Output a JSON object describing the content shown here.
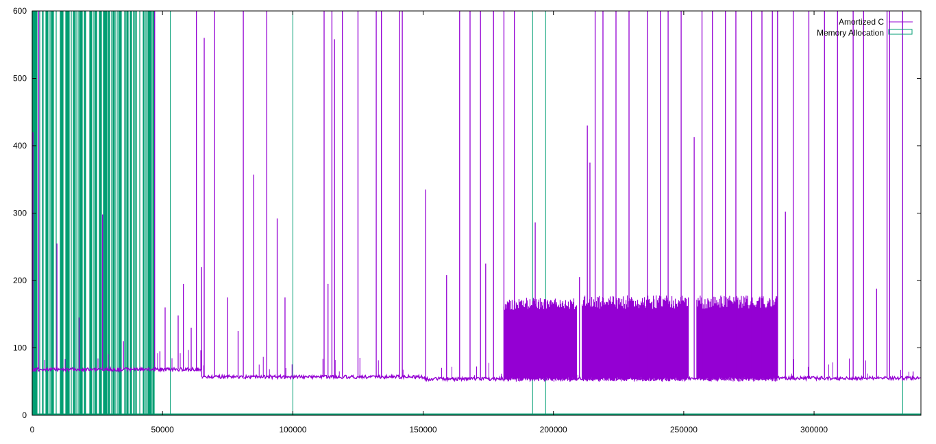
{
  "chart_data": {
    "type": "line",
    "title": "",
    "xlabel": "",
    "ylabel": "",
    "xlim": [
      0,
      341000
    ],
    "ylim": [
      0,
      600
    ],
    "x_ticks": [
      0,
      50000,
      100000,
      150000,
      200000,
      250000,
      300000
    ],
    "y_ticks": [
      0,
      100,
      200,
      300,
      400,
      500,
      600
    ],
    "grid": false,
    "legend_position": "top-right",
    "series": [
      {
        "name": "Amortized C",
        "color": "#9400d3",
        "baseline_segments": [
          {
            "x_start": 0,
            "x_end": 65000,
            "y": 68
          },
          {
            "x_start": 65000,
            "x_end": 150000,
            "y": 57
          },
          {
            "x_start": 150000,
            "x_end": 181000,
            "y": 54
          },
          {
            "x_start": 181000,
            "x_end": 341000,
            "y": 55
          }
        ],
        "dense_bands": [
          {
            "x_start": 181000,
            "x_end": 209000,
            "y_low": 50,
            "y_high": 175
          },
          {
            "x_start": 211000,
            "x_end": 252000,
            "y_low": 50,
            "y_high": 178
          },
          {
            "x_start": 255000,
            "x_end": 286000,
            "y_low": 50,
            "y_high": 178
          }
        ],
        "spikes": [
          {
            "x": 300,
            "y": 420
          },
          {
            "x": 2500,
            "y": 600
          },
          {
            "x": 9500,
            "y": 255
          },
          {
            "x": 18000,
            "y": 145
          },
          {
            "x": 27000,
            "y": 298
          },
          {
            "x": 35000,
            "y": 110
          },
          {
            "x": 47000,
            "y": 600
          },
          {
            "x": 49000,
            "y": 95
          },
          {
            "x": 51000,
            "y": 160
          },
          {
            "x": 56000,
            "y": 148
          },
          {
            "x": 58000,
            "y": 195
          },
          {
            "x": 61000,
            "y": 130
          },
          {
            "x": 63000,
            "y": 600
          },
          {
            "x": 65000,
            "y": 220
          },
          {
            "x": 66000,
            "y": 560
          },
          {
            "x": 70000,
            "y": 600
          },
          {
            "x": 75000,
            "y": 175
          },
          {
            "x": 79000,
            "y": 125
          },
          {
            "x": 81000,
            "y": 600
          },
          {
            "x": 85000,
            "y": 357
          },
          {
            "x": 90000,
            "y": 600
          },
          {
            "x": 94000,
            "y": 292
          },
          {
            "x": 97000,
            "y": 175
          },
          {
            "x": 112000,
            "y": 600
          },
          {
            "x": 113500,
            "y": 195
          },
          {
            "x": 115000,
            "y": 600
          },
          {
            "x": 116000,
            "y": 558
          },
          {
            "x": 119000,
            "y": 600
          },
          {
            "x": 125000,
            "y": 600
          },
          {
            "x": 132000,
            "y": 600
          },
          {
            "x": 134000,
            "y": 600
          },
          {
            "x": 141000,
            "y": 600
          },
          {
            "x": 142000,
            "y": 600
          },
          {
            "x": 151000,
            "y": 335
          },
          {
            "x": 159000,
            "y": 208
          },
          {
            "x": 164000,
            "y": 600
          },
          {
            "x": 168000,
            "y": 600
          },
          {
            "x": 172000,
            "y": 600
          },
          {
            "x": 174000,
            "y": 225
          },
          {
            "x": 177000,
            "y": 600
          },
          {
            "x": 181000,
            "y": 600
          },
          {
            "x": 185000,
            "y": 600
          },
          {
            "x": 193000,
            "y": 286
          },
          {
            "x": 210000,
            "y": 205
          },
          {
            "x": 213000,
            "y": 430
          },
          {
            "x": 214000,
            "y": 375
          },
          {
            "x": 216000,
            "y": 600
          },
          {
            "x": 219000,
            "y": 600
          },
          {
            "x": 224000,
            "y": 600
          },
          {
            "x": 229000,
            "y": 600
          },
          {
            "x": 236000,
            "y": 600
          },
          {
            "x": 241000,
            "y": 600
          },
          {
            "x": 244000,
            "y": 600
          },
          {
            "x": 249000,
            "y": 600
          },
          {
            "x": 254000,
            "y": 413
          },
          {
            "x": 257000,
            "y": 600
          },
          {
            "x": 261000,
            "y": 600
          },
          {
            "x": 266000,
            "y": 600
          },
          {
            "x": 270000,
            "y": 600
          },
          {
            "x": 276000,
            "y": 600
          },
          {
            "x": 280000,
            "y": 600
          },
          {
            "x": 284000,
            "y": 600
          },
          {
            "x": 286000,
            "y": 600
          },
          {
            "x": 289000,
            "y": 302
          },
          {
            "x": 292000,
            "y": 600
          },
          {
            "x": 298000,
            "y": 600
          },
          {
            "x": 304000,
            "y": 600
          },
          {
            "x": 309000,
            "y": 600
          },
          {
            "x": 315000,
            "y": 600
          },
          {
            "x": 319000,
            "y": 600
          },
          {
            "x": 324000,
            "y": 188
          },
          {
            "x": 328000,
            "y": 600
          },
          {
            "x": 329000,
            "y": 600
          },
          {
            "x": 334000,
            "y": 600
          },
          {
            "x": 338000,
            "y": 65
          }
        ]
      },
      {
        "name": "Memory Allocation",
        "color": "#009e73",
        "baseline": 1,
        "dense_region": {
          "x_start": 0,
          "x_end": 47000,
          "y_high": 600
        },
        "spikes": [
          {
            "x": 53000,
            "y": 600
          },
          {
            "x": 100000,
            "y": 600
          },
          {
            "x": 192000,
            "y": 600
          },
          {
            "x": 197000,
            "y": 600
          },
          {
            "x": 334000,
            "y": 600
          }
        ]
      }
    ]
  }
}
